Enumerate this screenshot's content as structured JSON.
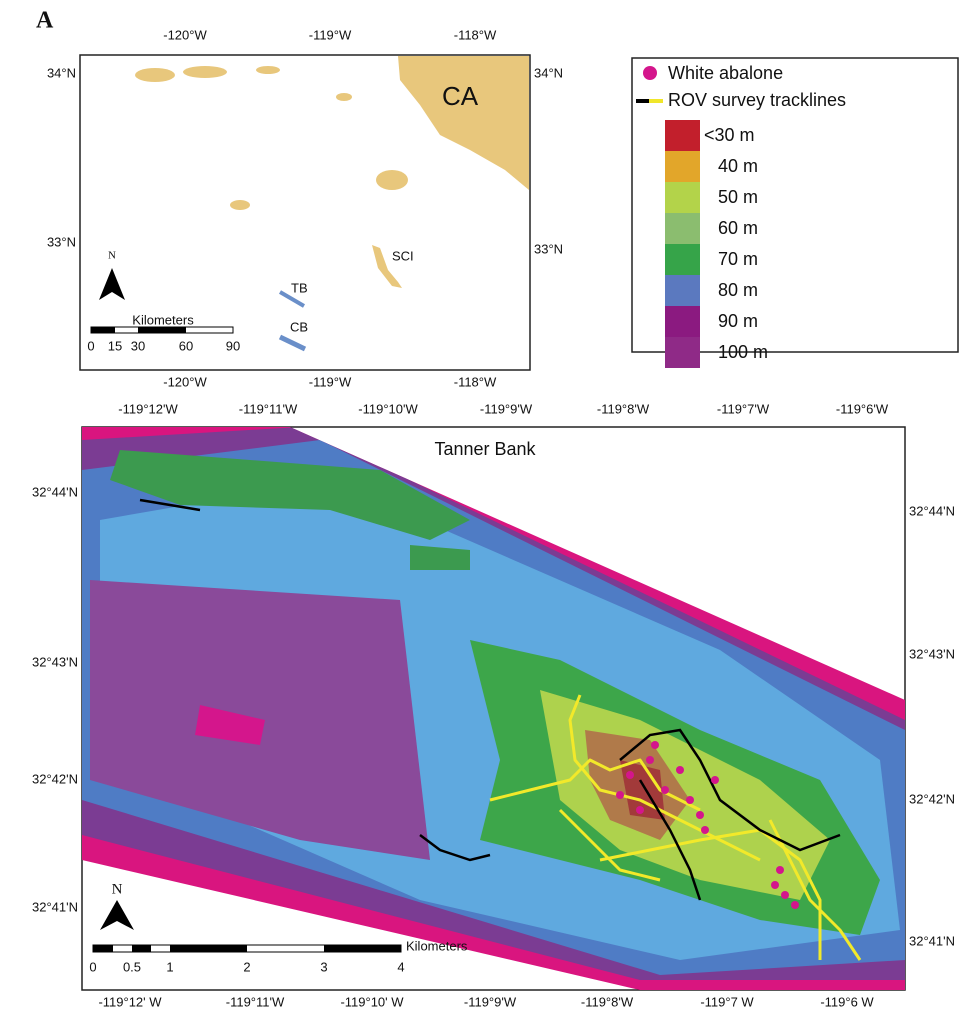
{
  "panel_label": "A",
  "inset_map": {
    "top_ticks": [
      "-120°W",
      "-119°W",
      "-118°W"
    ],
    "bottom_ticks": [
      "-120°W",
      "-119°W",
      "-118°W"
    ],
    "left_ticks": [
      "34°N",
      "33°N"
    ],
    "right_ticks": [
      "34°N",
      "33°N"
    ],
    "labels": {
      "ca": "CA",
      "sci": "SCI",
      "tb": "TB",
      "cb": "CB"
    },
    "north": "N",
    "scale": {
      "title": "Kilometers",
      "ticks": [
        "0",
        "15",
        "30",
        "60",
        "90"
      ]
    }
  },
  "legend": {
    "abalone": "White abalone",
    "tracklines": "ROV survey tracklines",
    "depths": [
      {
        "label": "<30 m",
        "color": "#c21f2c"
      },
      {
        "label": "40 m",
        "color": "#e2a62a"
      },
      {
        "label": "50 m",
        "color": "#b3d34a"
      },
      {
        "label": "60 m",
        "color": "#8bbd6f"
      },
      {
        "label": "70 m",
        "color": "#36a449"
      },
      {
        "label": "80 m",
        "color": "#5b79bf"
      },
      {
        "label": "90 m",
        "color": "#8b1a80"
      },
      {
        "label": "100 m",
        "color": "#8f2a87"
      }
    ]
  },
  "main_map": {
    "title": "Tanner Bank",
    "top_ticks": [
      "-119°12'W",
      "-119°11'W",
      "-119°10'W",
      "-119°9'W",
      "-119°8'W",
      "-119°7'W",
      "-119°6'W"
    ],
    "bottom_ticks": [
      "-119°12' W",
      "-119°11'W",
      "-119°10' W",
      "-119°9'W",
      "-119°8'W",
      "-119°7 W",
      "-119°6 W"
    ],
    "left_ticks": [
      "32°44'N",
      "32°43'N",
      "32°42'N",
      "32°41'N"
    ],
    "right_ticks": [
      "32°44'N",
      "32°43'N",
      "32°42'N",
      "32°41'N"
    ],
    "north": "N",
    "scale": {
      "title": "Kilometers",
      "ticks": [
        "0",
        "0.5",
        "1",
        "2",
        "3",
        "4"
      ]
    }
  }
}
